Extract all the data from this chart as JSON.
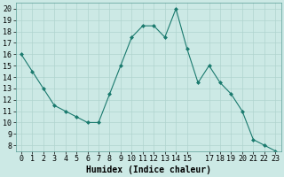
{
  "x": [
    0,
    1,
    2,
    3,
    4,
    5,
    6,
    7,
    8,
    9,
    10,
    11,
    12,
    13,
    14,
    15,
    16,
    17,
    18,
    19,
    20,
    21,
    22,
    23
  ],
  "y": [
    16,
    14.5,
    13,
    11.5,
    11,
    10.5,
    10,
    10,
    12.5,
    15,
    17.5,
    18.5,
    18.5,
    17.5,
    20,
    16.5,
    13.5,
    15,
    13.5,
    12.5,
    11,
    8.5,
    8,
    7.5
  ],
  "line_color": "#1a7a6e",
  "marker": "D",
  "marker_size": 2,
  "bg_color": "#cce9e5",
  "grid_color": "#b0d4cf",
  "xlabel": "Humidex (Indice chaleur)",
  "xlim": [
    -0.5,
    23.5
  ],
  "ylim": [
    7.5,
    20.5
  ],
  "yticks": [
    8,
    9,
    10,
    11,
    12,
    13,
    14,
    15,
    16,
    17,
    18,
    19,
    20
  ],
  "xticks": [
    0,
    1,
    2,
    3,
    4,
    5,
    6,
    7,
    8,
    9,
    10,
    11,
    12,
    13,
    14,
    15,
    17,
    18,
    19,
    20,
    21,
    22,
    23
  ],
  "xlabel_fontsize": 7,
  "tick_fontsize": 6,
  "linewidth": 0.8
}
